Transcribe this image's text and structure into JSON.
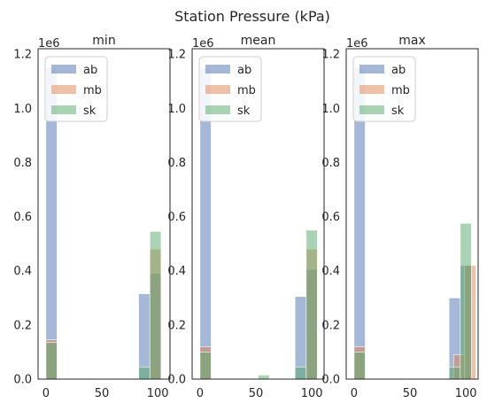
{
  "figure": {
    "title": "Station Pressure (kPa)",
    "offset_text": "1e6"
  },
  "colors": {
    "ab": "#4c72b0",
    "mb": "#dd8452",
    "sk": "#55a868",
    "axes_edge": "#262626",
    "text": "#262626",
    "legend_edge": "#cccccc"
  },
  "chart_data": [
    {
      "type": "bar",
      "title": "min",
      "histogram": true,
      "bar_opacity": 0.5,
      "xlim": [
        -7,
        111
      ],
      "ylim": [
        0,
        1220000
      ],
      "xticks": [
        0,
        50,
        100
      ],
      "yticks": [
        0.0,
        0.2,
        0.4,
        0.6,
        0.8,
        1.0,
        1.2
      ],
      "y_offset_text": "1e6",
      "legend": {
        "placement": "upper-left",
        "entries": [
          "ab",
          "mb",
          "sk"
        ]
      },
      "series": [
        {
          "name": "ab",
          "bins": [
            {
              "x0": 0.0,
              "x1": 10.0,
              "count": 1150000
            },
            {
              "x0": 83.0,
              "x1": 93.0,
              "count": 315000
            },
            {
              "x0": 93.0,
              "x1": 103.0,
              "count": 390000
            }
          ]
        },
        {
          "name": "mb",
          "bins": [
            {
              "x0": 0.0,
              "x1": 10.0,
              "count": 145000
            },
            {
              "x0": 93.0,
              "x1": 103.0,
              "count": 480000
            }
          ]
        },
        {
          "name": "sk",
          "bins": [
            {
              "x0": 0.0,
              "x1": 10.0,
              "count": 135000
            },
            {
              "x0": 83.0,
              "x1": 93.0,
              "count": 45000
            },
            {
              "x0": 93.0,
              "x1": 103.0,
              "count": 545000
            }
          ]
        }
      ]
    },
    {
      "type": "bar",
      "title": "mean",
      "histogram": true,
      "bar_opacity": 0.5,
      "xlim": [
        -7,
        111
      ],
      "ylim": [
        0,
        1220000
      ],
      "xticks": [
        0,
        50,
        100
      ],
      "yticks": [
        0.0,
        0.2,
        0.4,
        0.6,
        0.8,
        1.0,
        1.2
      ],
      "y_offset_text": "1e6",
      "legend": {
        "placement": "upper-left",
        "entries": [
          "ab",
          "mb",
          "sk"
        ]
      },
      "series": [
        {
          "name": "ab",
          "bins": [
            {
              "x0": 0.0,
              "x1": 10.0,
              "count": 1150000
            },
            {
              "x0": 85.0,
              "x1": 95.0,
              "count": 305000
            },
            {
              "x0": 95.0,
              "x1": 105.0,
              "count": 405000
            }
          ]
        },
        {
          "name": "mb",
          "bins": [
            {
              "x0": 0.0,
              "x1": 10.0,
              "count": 120000
            },
            {
              "x0": 95.0,
              "x1": 105.0,
              "count": 480000
            }
          ]
        },
        {
          "name": "sk",
          "bins": [
            {
              "x0": 0.0,
              "x1": 10.0,
              "count": 100000
            },
            {
              "x0": 52.0,
              "x1": 62.0,
              "count": 15000
            },
            {
              "x0": 85.0,
              "x1": 95.0,
              "count": 45000
            },
            {
              "x0": 95.0,
              "x1": 105.0,
              "count": 550000
            }
          ]
        }
      ]
    },
    {
      "type": "bar",
      "title": "max",
      "histogram": true,
      "bar_opacity": 0.5,
      "xlim": [
        -7,
        111
      ],
      "ylim": [
        0,
        1220000
      ],
      "xticks": [
        0,
        50,
        100
      ],
      "yticks": [
        0.0,
        0.2,
        0.4,
        0.6,
        0.8,
        1.0,
        1.2
      ],
      "y_offset_text": "1e6",
      "legend": {
        "placement": "upper-left",
        "entries": [
          "ab",
          "mb",
          "sk"
        ]
      },
      "series": [
        {
          "name": "ab",
          "bins": [
            {
              "x0": 0.0,
              "x1": 10.0,
              "count": 1150000
            },
            {
              "x0": 85.0,
              "x1": 95.0,
              "count": 300000
            },
            {
              "x0": 95.0,
              "x1": 105.0,
              "count": 420000
            }
          ]
        },
        {
          "name": "mb",
          "bins": [
            {
              "x0": 0.0,
              "x1": 10.0,
              "count": 120000
            },
            {
              "x0": 89.0,
              "x1": 99.0,
              "count": 90000
            },
            {
              "x0": 99.0,
              "x1": 109.0,
              "count": 420000
            }
          ]
        },
        {
          "name": "sk",
          "bins": [
            {
              "x0": 0.0,
              "x1": 10.0,
              "count": 100000
            },
            {
              "x0": 85.0,
              "x1": 95.0,
              "count": 45000
            },
            {
              "x0": 95.0,
              "x1": 105.0,
              "count": 575000
            }
          ]
        }
      ]
    }
  ]
}
